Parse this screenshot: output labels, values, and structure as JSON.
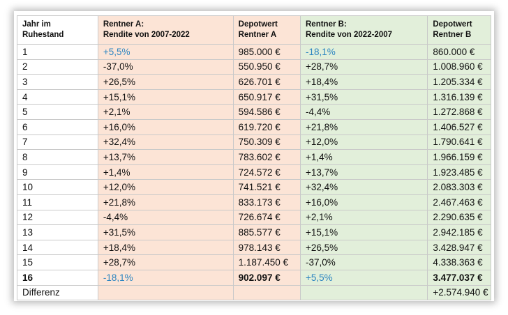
{
  "headers": {
    "year": "Jahr im Ruhestand",
    "a_return": "Rentner A: Rendite von 2007-2022",
    "a_value": "Depotwert Rentner A",
    "b_return": "Rentner B: Rendite von 2022-2007",
    "b_value": "Depotwert Rentner B"
  },
  "rows": [
    {
      "year": "1",
      "a_return": "+5,5%",
      "a_value": "985.000 €",
      "b_return": "-18,1%",
      "b_value": "860.000 €"
    },
    {
      "year": "2",
      "a_return": "-37,0%",
      "a_value": "550.950 €",
      "b_return": "+28,7%",
      "b_value": "1.008.960 €"
    },
    {
      "year": "3",
      "a_return": "+26,5%",
      "a_value": "626.701 €",
      "b_return": "+18,4%",
      "b_value": "1.205.334 €"
    },
    {
      "year": "4",
      "a_return": "+15,1%",
      "a_value": "650.917 €",
      "b_return": "+31,5%",
      "b_value": "1.316.139 €"
    },
    {
      "year": "5",
      "a_return": "+2,1%",
      "a_value": "594.586 €",
      "b_return": "-4,4%",
      "b_value": "1.272.868 €"
    },
    {
      "year": "6",
      "a_return": "+16,0%",
      "a_value": "619.720 €",
      "b_return": "+21,8%",
      "b_value": "1.406.527 €"
    },
    {
      "year": "7",
      "a_return": "+32,4%",
      "a_value": "750.309 €",
      "b_return": "+12,0%",
      "b_value": "1.790.641 €"
    },
    {
      "year": "8",
      "a_return": "+13,7%",
      "a_value": "783.602 €",
      "b_return": "+1,4%",
      "b_value": "1.966.159 €"
    },
    {
      "year": "9",
      "a_return": "+1,4%",
      "a_value": "724.572 €",
      "b_return": "+13,7%",
      "b_value": "1.923.485 €"
    },
    {
      "year": "10",
      "a_return": "+12,0%",
      "a_value": "741.521 €",
      "b_return": "+32,4%",
      "b_value": "2.083.303 €"
    },
    {
      "year": "11",
      "a_return": "+21,8%",
      "a_value": "833.173 €",
      "b_return": "+16,0%",
      "b_value": "2.467.463 €"
    },
    {
      "year": "12",
      "a_return": "-4,4%",
      "a_value": "726.674 €",
      "b_return": "+2,1%",
      "b_value": "2.290.635 €"
    },
    {
      "year": "13",
      "a_return": "+31,5%",
      "a_value": "885.577 €",
      "b_return": "+15,1%",
      "b_value": "2.942.185 €"
    },
    {
      "year": "14",
      "a_return": "+18,4%",
      "a_value": "978.143 €",
      "b_return": "+26,5%",
      "b_value": "3.428.947 €"
    },
    {
      "year": "15",
      "a_return": "+28,7%",
      "a_value": "1.187.450 €",
      "b_return": "-37,0%",
      "b_value": "4.338.363 €"
    },
    {
      "year": "16",
      "a_return": "-18,1%",
      "a_value": "902.097 €",
      "b_return": "+5,5%",
      "b_value": "3.477.037 €"
    }
  ],
  "footer": {
    "label": "Differenz",
    "b_value": "+2.574.940 €"
  },
  "colors": {
    "rentner_a_bg": "#fce4d6",
    "rentner_b_bg": "#e2efda",
    "highlight_text": "#2e86c1"
  }
}
